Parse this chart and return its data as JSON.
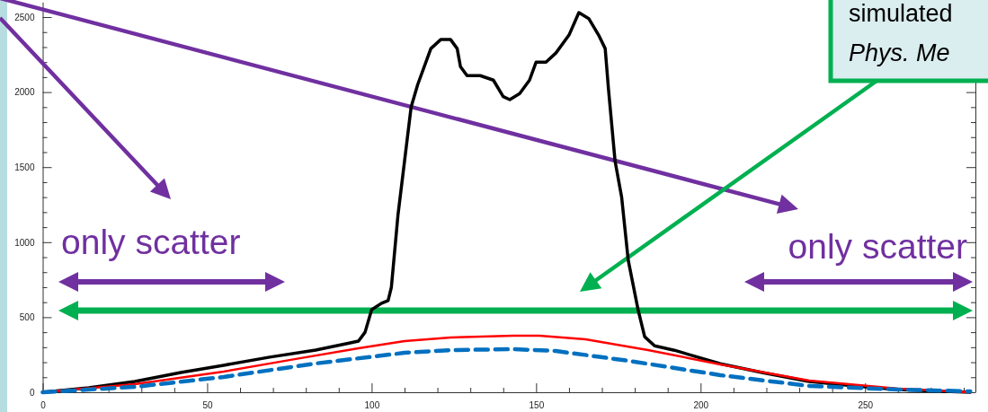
{
  "chart_data": {
    "type": "line",
    "xlim": [
      0,
      283
    ],
    "ylim": [
      0,
      2600
    ],
    "xticks": [
      0,
      {
        "value": 10,
        "label": null
      },
      {
        "value": 20,
        "label": null
      },
      {
        "value": 30,
        "label": null
      },
      {
        "value": 40,
        "label": null
      },
      50,
      {
        "value": 60,
        "label": null
      },
      {
        "value": 70,
        "label": null
      },
      {
        "value": 80,
        "label": null
      },
      {
        "value": 90,
        "label": null
      },
      100,
      {
        "value": 110,
        "label": null
      },
      {
        "value": 120,
        "label": null
      },
      {
        "value": 130,
        "label": null
      },
      {
        "value": 140,
        "label": null
      },
      150,
      {
        "value": 160,
        "label": null
      },
      {
        "value": 170,
        "label": null
      },
      {
        "value": 180,
        "label": null
      },
      {
        "value": 190,
        "label": null
      },
      200,
      {
        "value": 210,
        "label": null
      },
      {
        "value": 220,
        "label": null
      },
      {
        "value": 230,
        "label": null
      },
      {
        "value": 240,
        "label": null
      },
      250,
      {
        "value": 260,
        "label": null
      },
      {
        "value": 270,
        "label": null
      },
      {
        "value": 280,
        "label": null
      }
    ],
    "yticks": [
      0,
      {
        "value": 100,
        "label": null
      },
      {
        "value": 200,
        "label": null
      },
      {
        "value": 300,
        "label": null
      },
      {
        "value": 400,
        "label": null
      },
      500,
      {
        "value": 600,
        "label": null
      },
      {
        "value": 700,
        "label": null
      },
      {
        "value": 800,
        "label": null
      },
      {
        "value": 900,
        "label": null
      },
      1000,
      {
        "value": 1100,
        "label": null
      },
      {
        "value": 1200,
        "label": null
      },
      {
        "value": 1300,
        "label": null
      },
      {
        "value": 1400,
        "label": null
      },
      1500,
      {
        "value": 1600,
        "label": null
      },
      {
        "value": 1700,
        "label": null
      },
      {
        "value": 1800,
        "label": null
      },
      {
        "value": 1900,
        "label": null
      },
      2000,
      {
        "value": 2100,
        "label": null
      },
      {
        "value": 2200,
        "label": null
      },
      {
        "value": 2300,
        "label": null
      },
      {
        "value": 2400,
        "label": null
      },
      2500
    ],
    "grid": false,
    "marker": "none",
    "series": [
      {
        "color": "#000000",
        "line_style": "solid",
        "x": [
          0,
          14,
          28,
          42,
          55,
          69,
          83,
          93.5,
          96,
          98,
          100,
          103,
          105,
          106,
          108,
          110,
          112,
          114,
          118,
          121,
          124,
          126,
          127,
          129,
          133,
          137,
          140,
          142,
          145,
          148,
          150,
          153,
          156,
          160,
          163,
          166,
          169,
          171,
          172,
          174,
          176,
          178,
          181,
          183,
          186,
          192,
          206,
          219,
          233,
          247,
          260,
          274,
          282
        ],
        "values": [
          0,
          30,
          72,
          132,
          180,
          234,
          281,
          329,
          341,
          400,
          550,
          593,
          611,
          700,
          1180,
          1540,
          1900,
          2050,
          2290,
          2350,
          2350,
          2290,
          2170,
          2110,
          2110,
          2080,
          1970,
          1950,
          1990,
          2080,
          2200,
          2200,
          2260,
          2380,
          2530,
          2490,
          2380,
          2290,
          2020,
          1540,
          1300,
          880,
          550,
          370,
          310,
          280,
          190,
          130,
          72,
          42,
          18,
          6,
          0
        ]
      },
      {
        "color": "#ff0000",
        "line_style": "solid",
        "x": [
          0,
          28,
          55,
          77,
          96,
          110,
          124,
          143,
          151,
          165,
          184,
          206,
          233,
          260,
          282
        ],
        "values": [
          0,
          54,
          138,
          222,
          293,
          341,
          365,
          377,
          377,
          353,
          281,
          186,
          78,
          24,
          0
        ]
      },
      {
        "color": "#0070c0",
        "line_style": "dashed",
        "x": [
          0,
          28,
          55,
          83,
          110,
          124,
          143,
          156,
          178,
          206,
          233,
          260,
          282
        ],
        "values": [
          0,
          36,
          102,
          192,
          263,
          281,
          287,
          275,
          210,
          114,
          42,
          18,
          6
        ]
      }
    ],
    "annotations": [
      "only scatter",
      "only scatter",
      "simulated",
      "Phys. Me"
    ]
  }
}
